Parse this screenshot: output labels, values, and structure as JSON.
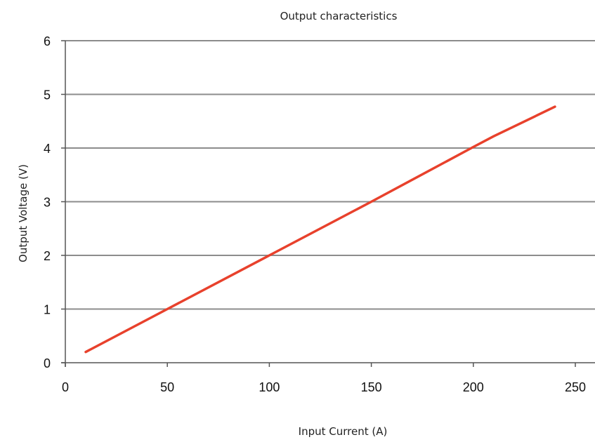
{
  "chart_data": {
    "type": "line",
    "title": "Output characteristics",
    "xlabel": "Input Current (A)",
    "ylabel": "Output Voltage (V)",
    "xlim": [
      0,
      250
    ],
    "ylim": [
      0,
      6
    ],
    "xticks": [
      "0",
      "50",
      "100",
      "150",
      "200",
      "250"
    ],
    "yticks": [
      "0",
      "1",
      "2",
      "3",
      "4",
      "5",
      "6"
    ],
    "grid": "horizontal",
    "legend": "none",
    "series": [
      {
        "color": "#e8412c",
        "x": [
          10,
          50,
          100,
          150,
          200,
          210,
          240
        ],
        "y": [
          0.2,
          1.0,
          2.0,
          3.0,
          4.02,
          4.22,
          4.77
        ]
      }
    ]
  }
}
